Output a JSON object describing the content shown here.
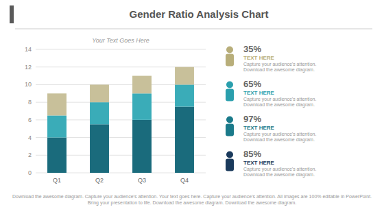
{
  "chart_data": {
    "type": "bar",
    "stacked": true,
    "title": "Gender Ratio Analysis Chart",
    "subtitle": "Your Text Goes Here",
    "categories": [
      "Q1",
      "Q2",
      "Q3",
      "Q4"
    ],
    "series": [
      {
        "color": "#1a6b7c",
        "values": [
          4.0,
          5.5,
          6.0,
          7.5
        ]
      },
      {
        "color": "#3aacb8",
        "values": [
          2.5,
          2.5,
          3.0,
          2.5
        ]
      },
      {
        "color": "#c8c09a",
        "values": [
          2.5,
          2.0,
          2.0,
          2.0
        ]
      }
    ],
    "ylim": [
      0,
      14
    ],
    "yticks": [
      0,
      2,
      4,
      6,
      8,
      10,
      12,
      14
    ],
    "grid": true,
    "annotations": [
      "35%",
      "TEXT HERE",
      "Capture your audience's attention.",
      "Download the awesome diagram.",
      "65%",
      "TEXT HERE",
      "Capture your audience's attention.",
      "Download the awesome diagram.",
      "97%",
      "TEXT HERE",
      "Capture your audience's attention.",
      "Download the awesome diagram.",
      "85%",
      "TEXT HERE",
      "Capture your audience's attention.",
      "Download the awesome diagram.",
      "Download the awesome diagram. Capture your audience's attention. Your text goes here. Capture your audience's attention. All images are 100% editable in PowerPoint. Bring your presentation to life. Download the awesome diagram. Download the awesome diagram."
    ]
  }
}
